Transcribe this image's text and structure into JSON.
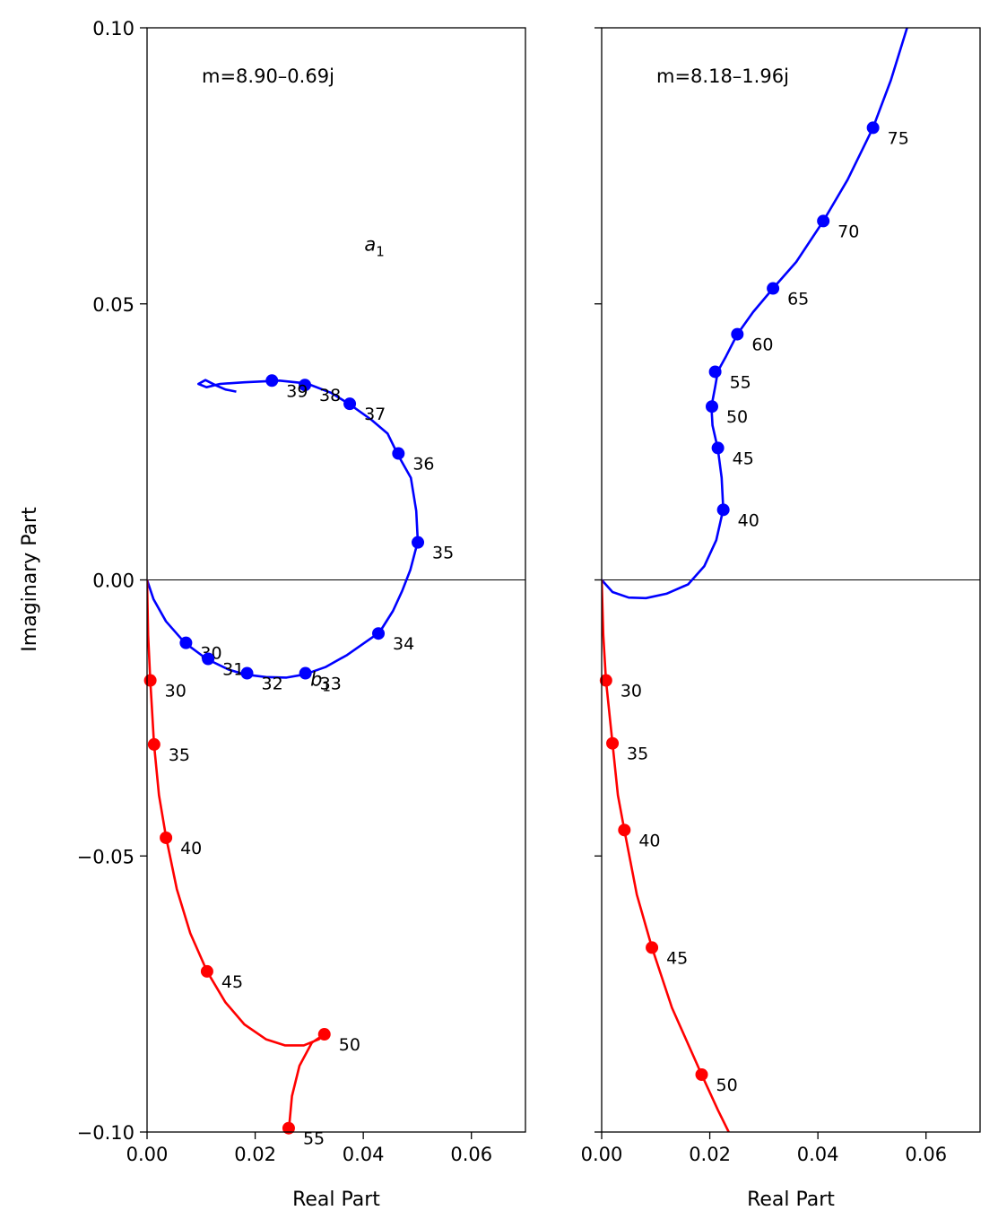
{
  "figure": {
    "colors": {
      "blue": "#0000ff",
      "red": "#ff0000",
      "axis": "#000000"
    },
    "ylabel": "Imaginary Part"
  },
  "chart_data": [
    {
      "type": "line",
      "annotation": "m=8.90–0.69j",
      "xlabel": "Real Part",
      "ylabel": "Imaginary Part",
      "xlim": [
        0.0,
        0.07
      ],
      "ylim": [
        -0.1,
        0.1
      ],
      "xticks": [
        "0.00",
        "0.02",
        "0.04",
        "0.06"
      ],
      "yticks": [
        "−0.10",
        "−0.05",
        "0.00",
        "0.05",
        "0.10"
      ],
      "coef_labels": [
        {
          "text": "a",
          "sub": "1",
          "x": 0.0402,
          "y": 0.0596
        },
        {
          "text": "b",
          "sub": "1",
          "x": 0.0302,
          "y": -0.0192
        }
      ],
      "series": [
        {
          "color": "#0000ff",
          "curve": [
            [
              0.0,
              0.0
            ],
            [
              0.0012,
              -0.0035
            ],
            [
              0.0035,
              -0.0075
            ],
            [
              0.007,
              -0.0114
            ],
            [
              0.011,
              -0.0143
            ],
            [
              0.015,
              -0.0162
            ],
            [
              0.018,
              -0.0171
            ],
            [
              0.022,
              -0.0176
            ],
            [
              0.0258,
              -0.0177
            ],
            [
              0.0292,
              -0.0171
            ],
            [
              0.033,
              -0.0158
            ],
            [
              0.037,
              -0.0136
            ],
            [
              0.0405,
              -0.0112
            ],
            [
              0.043,
              -0.0095
            ],
            [
              0.0455,
              -0.0056
            ],
            [
              0.0472,
              -0.002
            ],
            [
              0.0487,
              0.0018
            ],
            [
              0.0497,
              0.0055
            ],
            [
              0.0501,
              0.0068
            ],
            [
              0.0498,
              0.0125
            ],
            [
              0.0488,
              0.0185
            ],
            [
              0.0465,
              0.0225
            ],
            [
              0.0445,
              0.0265
            ],
            [
              0.0415,
              0.029
            ],
            [
              0.0375,
              0.0318
            ],
            [
              0.034,
              0.0339
            ],
            [
              0.0295,
              0.0356
            ],
            [
              0.0245,
              0.0361
            ],
            [
              0.018,
              0.0358
            ],
            [
              0.0135,
              0.0355
            ],
            [
              0.011,
              0.0349
            ],
            [
              0.0095,
              0.0355
            ],
            [
              0.0108,
              0.0362
            ],
            [
              0.0128,
              0.0352
            ],
            [
              0.0145,
              0.0345
            ],
            [
              0.0165,
              0.0341
            ]
          ],
          "points": [
            {
              "x": 0.0072,
              "y": -0.0114,
              "label": "30"
            },
            {
              "x": 0.0113,
              "y": -0.0143,
              "label": "31"
            },
            {
              "x": 0.0185,
              "y": -0.0169,
              "label": "32"
            },
            {
              "x": 0.0293,
              "y": -0.0169,
              "label": "33"
            },
            {
              "x": 0.0428,
              "y": -0.0097,
              "label": "34"
            },
            {
              "x": 0.0501,
              "y": 0.0068,
              "label": "35"
            },
            {
              "x": 0.0465,
              "y": 0.0229,
              "label": "36"
            },
            {
              "x": 0.0375,
              "y": 0.0319,
              "label": "37"
            },
            {
              "x": 0.0292,
              "y": 0.0353,
              "label": "38"
            },
            {
              "x": 0.0231,
              "y": 0.0361,
              "label": "39"
            }
          ]
        },
        {
          "color": "#ff0000",
          "curve": [
            [
              0.0,
              0.0
            ],
            [
              0.0002,
              -0.01
            ],
            [
              0.0006,
              -0.0182
            ],
            [
              0.0013,
              -0.0298
            ],
            [
              0.0022,
              -0.039
            ],
            [
              0.0035,
              -0.0465
            ],
            [
              0.0055,
              -0.056
            ],
            [
              0.008,
              -0.064
            ],
            [
              0.0111,
              -0.0709
            ],
            [
              0.0145,
              -0.0765
            ],
            [
              0.018,
              -0.0805
            ],
            [
              0.022,
              -0.0832
            ],
            [
              0.0255,
              -0.0843
            ],
            [
              0.029,
              -0.0843
            ],
            [
              0.0318,
              -0.0832
            ],
            [
              0.0328,
              -0.0823
            ],
            [
              0.0305,
              -0.0838
            ],
            [
              0.0282,
              -0.088
            ],
            [
              0.0268,
              -0.0935
            ],
            [
              0.0262,
              -0.1
            ]
          ],
          "points": [
            {
              "x": 0.0006,
              "y": -0.0182,
              "label": "30"
            },
            {
              "x": 0.0013,
              "y": -0.0298,
              "label": "35"
            },
            {
              "x": 0.0035,
              "y": -0.0467,
              "label": "40"
            },
            {
              "x": 0.0111,
              "y": -0.0709,
              "label": "45"
            },
            {
              "x": 0.0328,
              "y": -0.0823,
              "label": "50"
            },
            {
              "x": 0.0262,
              "y": -0.0993,
              "label": "55"
            }
          ]
        }
      ]
    },
    {
      "type": "line",
      "annotation": "m=8.18–1.96j",
      "xlabel": "Real Part",
      "xlim": [
        0.0,
        0.07
      ],
      "ylim": [
        -0.1,
        0.1
      ],
      "xticks": [
        "0.00",
        "0.02",
        "0.04",
        "0.06"
      ],
      "yticks": [],
      "series": [
        {
          "color": "#0000ff",
          "curve": [
            [
              0.0,
              0.0
            ],
            [
              0.002,
              -0.0022
            ],
            [
              0.005,
              -0.0032
            ],
            [
              0.0082,
              -0.0033
            ],
            [
              0.012,
              -0.0025
            ],
            [
              0.016,
              -0.0008
            ],
            [
              0.019,
              0.0025
            ],
            [
              0.0212,
              0.0072
            ],
            [
              0.0225,
              0.0128
            ],
            [
              0.0222,
              0.0185
            ],
            [
              0.0215,
              0.0237
            ],
            [
              0.0205,
              0.028
            ],
            [
              0.0203,
              0.0314
            ],
            [
              0.021,
              0.035
            ],
            [
              0.0215,
              0.0378
            ],
            [
              0.023,
              0.0405
            ],
            [
              0.0251,
              0.0445
            ],
            [
              0.028,
              0.0485
            ],
            [
              0.0317,
              0.0528
            ],
            [
              0.036,
              0.0576
            ],
            [
              0.041,
              0.065
            ],
            [
              0.0455,
              0.0725
            ],
            [
              0.0502,
              0.0819
            ],
            [
              0.0535,
              0.0905
            ],
            [
              0.0565,
              0.1
            ]
          ],
          "points": [
            {
              "x": 0.0225,
              "y": 0.0127,
              "label": "40"
            },
            {
              "x": 0.0215,
              "y": 0.0239,
              "label": "45"
            },
            {
              "x": 0.0204,
              "y": 0.0314,
              "label": "50"
            },
            {
              "x": 0.021,
              "y": 0.0377,
              "label": "55"
            },
            {
              "x": 0.0251,
              "y": 0.0445,
              "label": "60"
            },
            {
              "x": 0.0317,
              "y": 0.0528,
              "label": "65"
            },
            {
              "x": 0.041,
              "y": 0.065,
              "label": "70"
            },
            {
              "x": 0.0502,
              "y": 0.0819,
              "label": "75"
            }
          ]
        },
        {
          "color": "#ff0000",
          "curve": [
            [
              0.0,
              0.0
            ],
            [
              0.0003,
              -0.01
            ],
            [
              0.0008,
              -0.0182
            ],
            [
              0.002,
              -0.0296
            ],
            [
              0.003,
              -0.039
            ],
            [
              0.0042,
              -0.0453
            ],
            [
              0.0065,
              -0.057
            ],
            [
              0.0093,
              -0.0666
            ],
            [
              0.013,
              -0.0775
            ],
            [
              0.0185,
              -0.0896
            ],
            [
              0.0215,
              -0.096
            ],
            [
              0.0235,
              -0.1
            ]
          ],
          "points": [
            {
              "x": 0.0008,
              "y": -0.0182,
              "label": "30"
            },
            {
              "x": 0.002,
              "y": -0.0296,
              "label": "35"
            },
            {
              "x": 0.0042,
              "y": -0.0453,
              "label": "40"
            },
            {
              "x": 0.0093,
              "y": -0.0666,
              "label": "45"
            },
            {
              "x": 0.0185,
              "y": -0.0896,
              "label": "50"
            }
          ]
        }
      ]
    }
  ]
}
